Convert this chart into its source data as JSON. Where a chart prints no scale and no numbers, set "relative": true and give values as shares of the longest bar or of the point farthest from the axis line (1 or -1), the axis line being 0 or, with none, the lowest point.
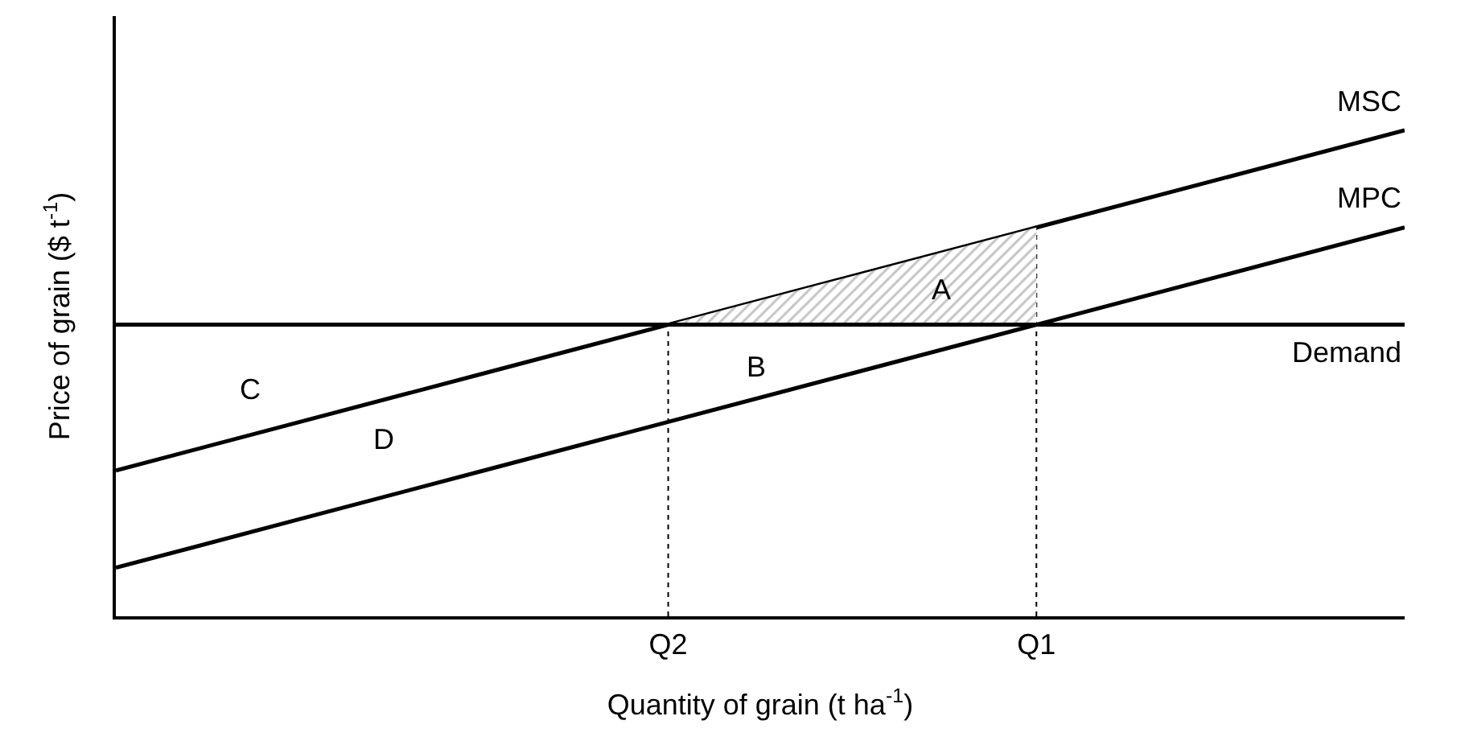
{
  "chart_data": {
    "type": "line",
    "relative": true,
    "xlabel": "Quantity of grain (t ha$^{-1}$)",
    "ylabel": "Price of grain ($ t$^{-1}$)",
    "categories": [
      null,
      null,
      null,
      "Q2",
      null,
      "Q1",
      null,
      null
    ],
    "series": [
      {
        "name": "MSC",
        "color": "#000000",
        "values": [
          0.3,
          0.4,
          0.5,
          0.6,
          0.7,
          0.8,
          0.9,
          1.0
        ]
      },
      {
        "name": "MPC",
        "color": "#000000",
        "values": [
          0.1,
          0.2,
          0.3,
          0.4,
          0.5,
          0.6,
          0.7,
          0.8
        ]
      },
      {
        "name": "Demand",
        "color": "#000000",
        "values": [
          0.6,
          0.6,
          0.6,
          0.6,
          0.6,
          0.6,
          0.6,
          0.6
        ],
        "lower": [
          null,
          null,
          null,
          0.6,
          0.6,
          0.6,
          null,
          null
        ],
        "upper": [
          null,
          null,
          null,
          0.6,
          0.7,
          0.8,
          null,
          null
        ]
      }
    ],
    "ref_lines": [
      {
        "axis": "x",
        "value": "Q2",
        "line_style": "dotted"
      },
      {
        "axis": "x",
        "value": "Q1",
        "line_style": "dotted"
      }
    ],
    "annotations": [
      "A",
      "B",
      "C",
      "D"
    ],
    "legend": false,
    "grid": false,
    "marker": "none",
    "line_style": "solid"
  }
}
